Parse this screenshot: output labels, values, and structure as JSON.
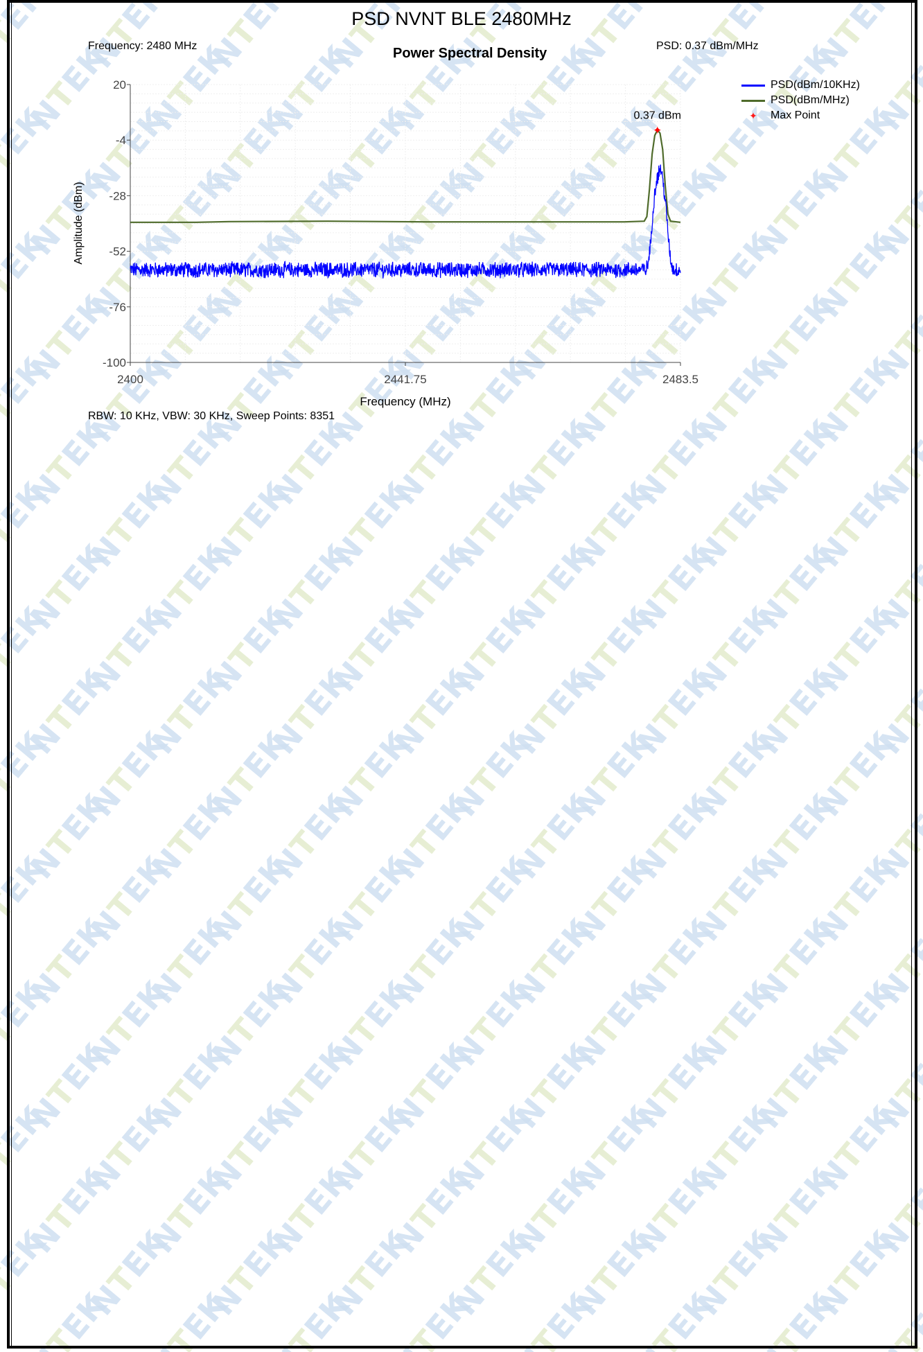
{
  "page": {
    "title": "PSD NVNT BLE 2480MHz"
  },
  "header": {
    "frequency_text": "Frequency: 2480 MHz",
    "psd_text": "PSD: 0.37 dBm/MHz"
  },
  "footer": {
    "settings_text": "RBW: 10 KHz,  VBW: 30 KHz,  Sweep Points: 8351"
  },
  "watermark": {
    "text": "NTEK"
  },
  "colors": {
    "series_10khz": "#0000ff",
    "series_mhz": "#4f6b2b",
    "max_point": "#ff0000",
    "watermark": "#cfe0f1"
  },
  "chart_data": {
    "type": "line",
    "title": "Power Spectral Density",
    "xlabel": "Frequency (MHz)",
    "ylabel": "Amplitude (dBm)",
    "xlim": [
      2400,
      2483.5
    ],
    "ylim": [
      -100,
      20
    ],
    "x_ticks": [
      "2400",
      "2441.75",
      "2483.5"
    ],
    "y_ticks": [
      "20",
      "-4",
      "-28",
      "-52",
      "-76",
      "-100"
    ],
    "grid": true,
    "legend_position": "top-right, outside plot",
    "annotation": "0.37 dBm",
    "max_point": {
      "x": 2480,
      "y": 0.37
    },
    "series": [
      {
        "name": "PSD(dBm/10KHz)",
        "color": "#0000ff",
        "noise_floor": -60,
        "noise_spread": 3,
        "peak": {
          "x": 2480.5,
          "y": -16
        },
        "points": [
          [
            2400,
            -60
          ],
          [
            2478.3,
            -60
          ],
          [
            2478.6,
            -57
          ],
          [
            2479.0,
            -48
          ],
          [
            2479.4,
            -32
          ],
          [
            2479.8,
            -22
          ],
          [
            2480.2,
            -18
          ],
          [
            2480.5,
            -16
          ],
          [
            2480.8,
            -21
          ],
          [
            2481.2,
            -30
          ],
          [
            2481.6,
            -44
          ],
          [
            2482.0,
            -56
          ],
          [
            2482.4,
            -60
          ],
          [
            2483.5,
            -60
          ]
        ]
      },
      {
        "name": "PSD(dBm/MHz)",
        "color": "#4f6b2b",
        "points": [
          [
            2400,
            -39.5
          ],
          [
            2410,
            -39.5
          ],
          [
            2415,
            -39.2
          ],
          [
            2430,
            -39.0
          ],
          [
            2445,
            -39.3
          ],
          [
            2460,
            -39.3
          ],
          [
            2475,
            -39.3
          ],
          [
            2478.0,
            -39.0
          ],
          [
            2478.4,
            -37
          ],
          [
            2478.8,
            -25
          ],
          [
            2479.2,
            -10
          ],
          [
            2479.6,
            -2
          ],
          [
            2480.0,
            0.37
          ],
          [
            2480.4,
            -1
          ],
          [
            2480.8,
            -8
          ],
          [
            2481.2,
            -24
          ],
          [
            2481.6,
            -36
          ],
          [
            2482.0,
            -39
          ],
          [
            2483.5,
            -39.5
          ]
        ]
      },
      {
        "name": "Max Point",
        "color": "#ff0000",
        "points": [
          [
            2480,
            0.37
          ]
        ]
      }
    ]
  }
}
